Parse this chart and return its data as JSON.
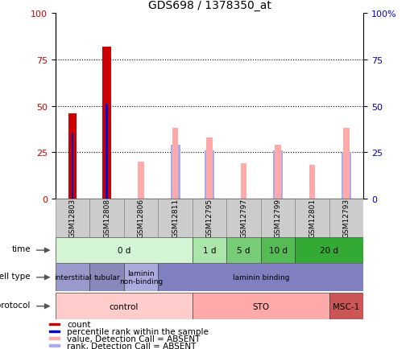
{
  "title": "GDS698 / 1378350_at",
  "samples": [
    "GSM12803",
    "GSM12808",
    "GSM12806",
    "GSM12811",
    "GSM12795",
    "GSM12797",
    "GSM12799",
    "GSM12801",
    "GSM12793"
  ],
  "count_values": [
    46,
    82,
    0,
    0,
    0,
    0,
    0,
    0,
    0
  ],
  "percentile_values": [
    35,
    51,
    0,
    0,
    0,
    0,
    0,
    0,
    0
  ],
  "absent_value_values": [
    0,
    0,
    20,
    38,
    33,
    19,
    29,
    18,
    38
  ],
  "absent_rank_values": [
    0,
    0,
    0,
    29,
    26,
    0,
    26,
    0,
    25
  ],
  "time_groups": [
    {
      "label": "0 d",
      "start": 0,
      "end": 4,
      "color": "#d4f5d4"
    },
    {
      "label": "1 d",
      "start": 4,
      "end": 5,
      "color": "#aae5aa"
    },
    {
      "label": "5 d",
      "start": 5,
      "end": 6,
      "color": "#77cc77"
    },
    {
      "label": "10 d",
      "start": 6,
      "end": 7,
      "color": "#55bb55"
    },
    {
      "label": "20 d",
      "start": 7,
      "end": 9,
      "color": "#33aa33"
    }
  ],
  "cell_type_groups": [
    {
      "label": "interstitial",
      "start": 0,
      "end": 1,
      "color": "#9999cc"
    },
    {
      "label": "tubular",
      "start": 1,
      "end": 2,
      "color": "#8888bb"
    },
    {
      "label": "laminin\nnon-binding",
      "start": 2,
      "end": 3,
      "color": "#aaaadd"
    },
    {
      "label": "laminin binding",
      "start": 3,
      "end": 9,
      "color": "#8080c0"
    }
  ],
  "growth_protocol_groups": [
    {
      "label": "control",
      "start": 0,
      "end": 4,
      "color": "#ffcccc"
    },
    {
      "label": "STO",
      "start": 4,
      "end": 8,
      "color": "#ffaaaa"
    },
    {
      "label": "MSC-1",
      "start": 8,
      "end": 9,
      "color": "#cc5555"
    }
  ],
  "count_color": "#cc0000",
  "percentile_color": "#0000cc",
  "absent_value_color": "#ffaaaa",
  "absent_rank_color": "#aaaaee",
  "grid_lines": [
    25,
    50,
    75
  ],
  "legend_items": [
    {
      "color": "#cc0000",
      "label": "count"
    },
    {
      "color": "#0000cc",
      "label": "percentile rank within the sample"
    },
    {
      "color": "#ffaaaa",
      "label": "value, Detection Call = ABSENT"
    },
    {
      "color": "#aaaaee",
      "label": "rank, Detection Call = ABSENT"
    }
  ]
}
